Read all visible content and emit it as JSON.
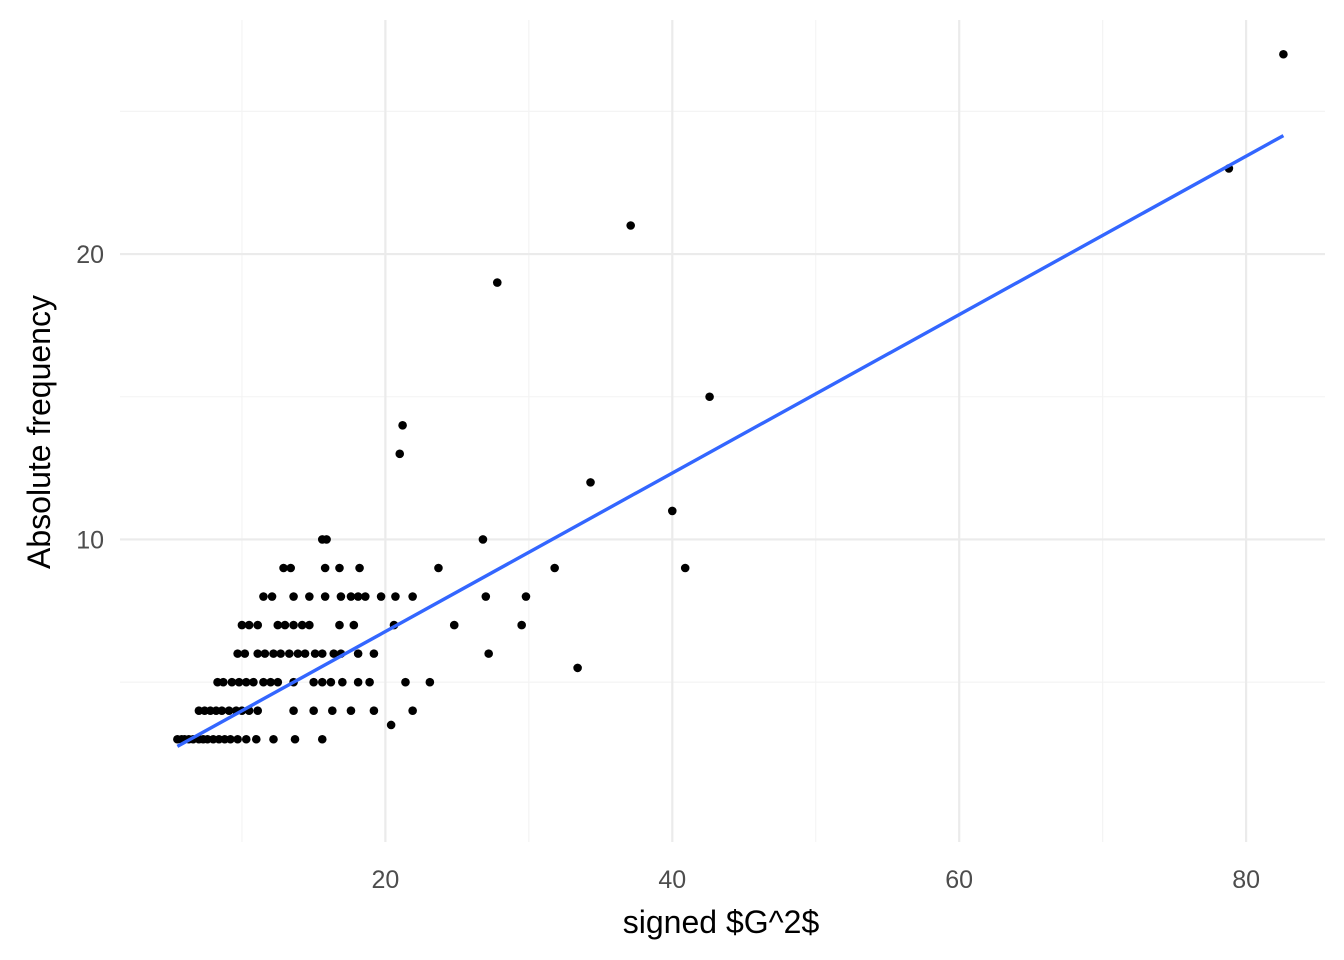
{
  "chart_data": {
    "type": "scatter",
    "title": "",
    "xlabel": "signed $G^2$",
    "ylabel": "Absolute frequency",
    "xlim": [
      1.5,
      85.5
    ],
    "ylim": [
      -0.6,
      28.2
    ],
    "x_ticks": [
      20,
      40,
      60,
      80
    ],
    "x_tick_labels": [
      "20",
      "40",
      "60",
      "80"
    ],
    "x_minor_ticks": [
      10,
      30,
      50,
      70
    ],
    "y_ticks": [
      10,
      20
    ],
    "y_tick_labels": [
      "10",
      "20"
    ],
    "y_minor_ticks": [
      5,
      15,
      25
    ],
    "grid": true,
    "legend": "none",
    "point_color": "#000000",
    "line_color": "#3366ff",
    "points": [
      [
        5.5,
        3
      ],
      [
        5.8,
        3
      ],
      [
        6.0,
        3
      ],
      [
        6.3,
        3
      ],
      [
        6.6,
        3
      ],
      [
        7.0,
        3
      ],
      [
        7.3,
        3
      ],
      [
        7.6,
        3
      ],
      [
        8.0,
        3
      ],
      [
        8.4,
        3
      ],
      [
        8.8,
        3
      ],
      [
        9.2,
        3
      ],
      [
        9.7,
        3
      ],
      [
        10.3,
        3
      ],
      [
        11.0,
        3
      ],
      [
        12.2,
        3
      ],
      [
        13.7,
        3
      ],
      [
        15.6,
        3
      ],
      [
        20.4,
        3.5
      ],
      [
        7.0,
        4
      ],
      [
        7.4,
        4
      ],
      [
        7.8,
        4
      ],
      [
        8.2,
        4
      ],
      [
        8.6,
        4
      ],
      [
        9.1,
        4
      ],
      [
        9.6,
        4
      ],
      [
        10.0,
        4
      ],
      [
        10.5,
        4
      ],
      [
        11.1,
        4
      ],
      [
        13.6,
        4
      ],
      [
        15.0,
        4
      ],
      [
        16.3,
        4
      ],
      [
        17.6,
        4
      ],
      [
        19.2,
        4
      ],
      [
        21.9,
        4
      ],
      [
        8.3,
        5
      ],
      [
        8.7,
        5
      ],
      [
        9.3,
        5
      ],
      [
        9.8,
        5
      ],
      [
        10.3,
        5
      ],
      [
        10.8,
        5
      ],
      [
        11.5,
        5
      ],
      [
        12.0,
        5
      ],
      [
        12.5,
        5
      ],
      [
        13.6,
        5
      ],
      [
        15.0,
        5
      ],
      [
        15.6,
        5
      ],
      [
        16.2,
        5
      ],
      [
        17.0,
        5
      ],
      [
        18.1,
        5
      ],
      [
        18.9,
        5
      ],
      [
        21.4,
        5
      ],
      [
        23.1,
        5
      ],
      [
        33.4,
        5.5
      ],
      [
        9.7,
        6
      ],
      [
        10.2,
        6
      ],
      [
        11.1,
        6
      ],
      [
        11.6,
        6
      ],
      [
        12.2,
        6
      ],
      [
        12.7,
        6
      ],
      [
        13.3,
        6
      ],
      [
        13.9,
        6
      ],
      [
        14.4,
        6
      ],
      [
        15.1,
        6
      ],
      [
        15.6,
        6
      ],
      [
        16.4,
        6
      ],
      [
        16.9,
        6
      ],
      [
        18.1,
        6
      ],
      [
        19.2,
        6
      ],
      [
        27.2,
        6
      ],
      [
        10.0,
        7
      ],
      [
        10.5,
        7
      ],
      [
        11.1,
        7
      ],
      [
        12.5,
        7
      ],
      [
        13.0,
        7
      ],
      [
        13.6,
        7
      ],
      [
        14.2,
        7
      ],
      [
        14.7,
        7
      ],
      [
        16.8,
        7
      ],
      [
        17.8,
        7
      ],
      [
        20.6,
        7
      ],
      [
        24.8,
        7
      ],
      [
        29.5,
        7
      ],
      [
        11.5,
        8
      ],
      [
        12.1,
        8
      ],
      [
        13.6,
        8
      ],
      [
        14.7,
        8
      ],
      [
        15.8,
        8
      ],
      [
        16.9,
        8
      ],
      [
        17.6,
        8
      ],
      [
        18.1,
        8
      ],
      [
        18.6,
        8
      ],
      [
        19.7,
        8
      ],
      [
        20.7,
        8
      ],
      [
        21.9,
        8
      ],
      [
        27.0,
        8
      ],
      [
        29.8,
        8
      ],
      [
        12.9,
        9
      ],
      [
        13.4,
        9
      ],
      [
        15.8,
        9
      ],
      [
        16.8,
        9
      ],
      [
        18.2,
        9
      ],
      [
        23.7,
        9
      ],
      [
        31.8,
        9
      ],
      [
        40.9,
        9
      ],
      [
        15.6,
        10
      ],
      [
        15.9,
        10
      ],
      [
        26.8,
        10
      ],
      [
        40.0,
        11
      ],
      [
        34.3,
        12
      ],
      [
        21.0,
        13
      ],
      [
        21.2,
        14
      ],
      [
        42.6,
        15
      ],
      [
        27.8,
        19
      ],
      [
        37.1,
        21
      ],
      [
        78.8,
        23
      ],
      [
        82.6,
        27
      ]
    ],
    "fit_line": {
      "type": "linear",
      "x": [
        5.5,
        82.6
      ],
      "y": [
        2.75,
        24.15
      ]
    }
  }
}
